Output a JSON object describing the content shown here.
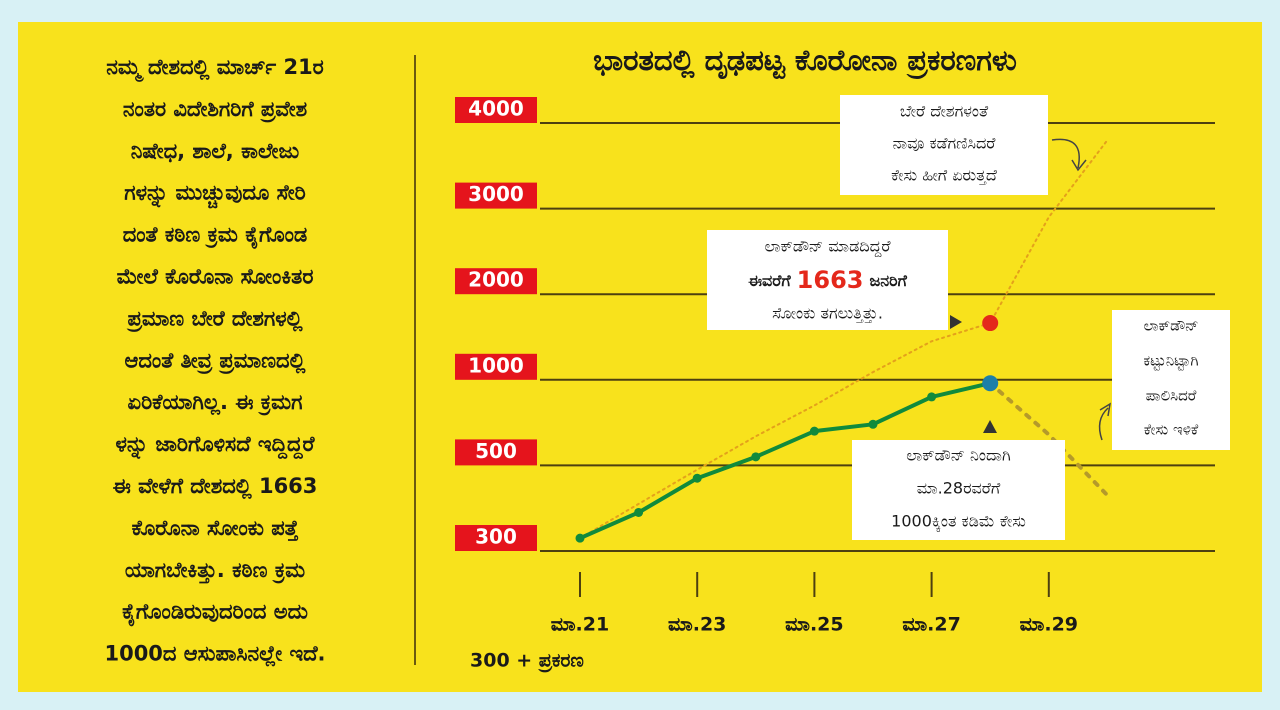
{
  "article": {
    "lines": [
      "ನಮ್ಮ ದೇಶದಲ್ಲಿ ಮಾರ್ಚ್ 21ರ",
      "ನಂತರ ವಿದೇಶಿಗರಿಗೆ ಪ್ರವೇಶ",
      "ನಿಷೇಧ, ಶಾಲೆ, ಕಾಲೇಜು",
      "ಗಳನ್ನು ಮುಚ್ಚುವುದೂ ಸೇರಿ",
      "ದಂತೆ ಕಠಿಣ ಕ್ರಮ ಕೈಗೊಂಡ",
      "ಮೇಲೆ ಕೊರೊನಾ ಸೋಂಕಿತರ",
      "ಪ್ರಮಾಣ ಬೇರೆ ದೇಶಗಳಲ್ಲಿ",
      "ಆದಂತೆ ತೀವ್ರ ಪ್ರಮಾಣದಲ್ಲಿ",
      "ಏರಿಕೆಯಾಗಿಲ್ಲ. ಈ ಕ್ರಮಗ",
      "ಳನ್ನು ಜಾರಿಗೊಳಿಸದೆ ಇದ್ದಿದ್ದರೆ",
      "ಈ ವೇಳೆಗೆ ದೇಶದಲ್ಲಿ 1663",
      "ಕೊರೊನಾ ಸೋಂಕು ಪತ್ತೆ",
      "ಯಾಗಬೇಕಿತ್ತು. ಕಠಿಣ ಕ್ರಮ",
      "ಕೈಗೊಂಡಿರುವುದರಿಂದ ಅದು",
      "1000ದ ಆಸುಪಾಸಿನಲ್ಲೇ ಇದೆ."
    ]
  },
  "chart_data": {
    "type": "line",
    "title": "ಭಾರತದಲ್ಲಿ ದೃಢಪಟ್ಟ ಕೊರೋನಾ ಪ್ರಕರಣಗಳು",
    "x_label": "300 + ಪ್ರಕರಣ",
    "categories": [
      "ಮಾ.21",
      null,
      "ಮಾ.23",
      null,
      "ಮಾ.25",
      null,
      "ಮಾ.27",
      null,
      "ಮಾ.29",
      null
    ],
    "ylim": [
      300,
      4000
    ],
    "yticks": [
      300,
      500,
      1000,
      2000,
      3000,
      4000
    ],
    "y_scale": "tick-spaced",
    "grid": true,
    "tick_label_color": "#e5141c",
    "series": [
      {
        "color": "#e4a11b",
        "style": "dotted-fine",
        "marker_color": "#e4281b",
        "values": [
          330,
          410,
          490,
          670,
          850,
          1090,
          1450,
          1663,
          2900,
          3800
        ]
      },
      {
        "color": "#118a3c",
        "style": "solid",
        "marker_color": "#1c7fa8",
        "values": [
          330,
          390,
          470,
          550,
          700,
          740,
          900,
          980,
          null,
          null
        ]
      },
      {
        "color": "#b59a2a",
        "style": "dotted-bold",
        "values": [
          null,
          null,
          null,
          null,
          null,
          null,
          null,
          980,
          680,
          430
        ]
      }
    ],
    "annotations": [
      {
        "lines": [
          "ಬೇರೆ ದೇಶಗಳಂತೆ",
          "ನಾವೂ ಕಡೆಗಣಿಸಿದರೆ",
          "ಕೇಸು ಹೀಗೆ ಏರುತ್ತದೆ"
        ]
      },
      {
        "lines": [
          "ಲಾಕ್‌ಡೌನ್ ಮಾಡದಿದ್ದರೆ",
          [
            "ಈವರೆಗೆ",
            "1663",
            "ಜನರಿಗೆ"
          ],
          "ಸೋಂಕು ತಗಲುತ್ತಿತ್ತು."
        ]
      },
      {
        "lines": [
          "ಲಾಕ್‌ಡೌನ್",
          "ಕಟ್ಟುನಿಟ್ಟಾಗಿ",
          "ಪಾಲಿಸಿದರೆ",
          "ಕೇಸು ಇಳಿಕೆ"
        ]
      },
      {
        "lines": [
          "ಲಾಕ್‌ಡೌನ್ ನಿಂದಾಗಿ",
          "ಮಾ.28ರವರೆಗೆ",
          "1000ಕ್ಕಿಂತ ಕಡಿಮೆ ಕೇಸು"
        ]
      }
    ]
  }
}
